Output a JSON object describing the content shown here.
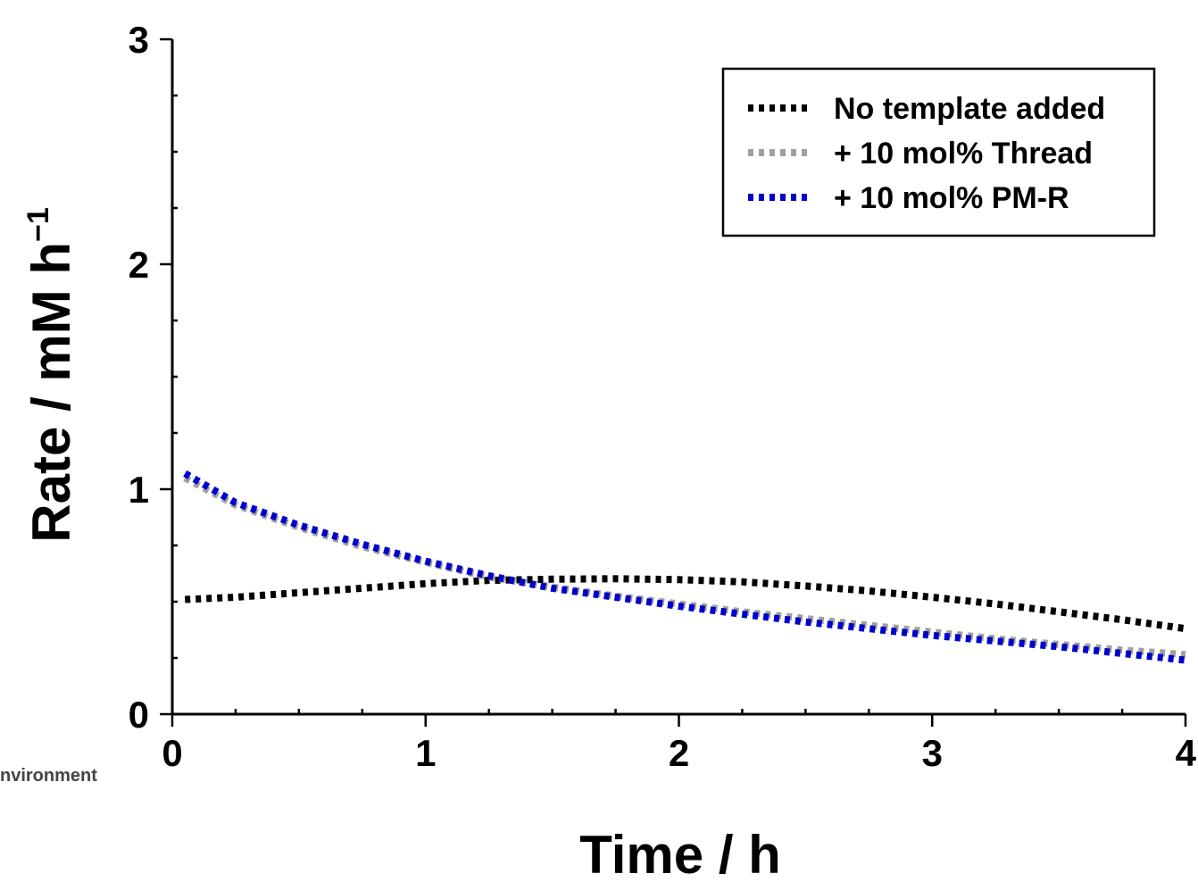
{
  "chart_data": {
    "type": "line",
    "xlabel": "Time / h",
    "ylabel": "Rate / mM h",
    "ylabel_superscript": "−1",
    "xlim": [
      0,
      4
    ],
    "ylim": [
      0,
      3
    ],
    "x_ticks": [
      "0",
      "1",
      "2",
      "3",
      "4"
    ],
    "y_ticks": [
      "0",
      "1",
      "2",
      "3"
    ],
    "grid": false,
    "legend_position": "top-right",
    "series": [
      {
        "name": "No template added",
        "color": "#000000",
        "x": [
          0.05,
          0.25,
          0.5,
          0.75,
          1.0,
          1.25,
          1.5,
          1.75,
          2.0,
          2.25,
          2.5,
          2.75,
          3.0,
          3.25,
          3.5,
          3.75,
          4.0
        ],
        "y": [
          0.51,
          0.52,
          0.54,
          0.56,
          0.58,
          0.595,
          0.6,
          0.602,
          0.598,
          0.588,
          0.57,
          0.548,
          0.52,
          0.49,
          0.455,
          0.42,
          0.38
        ]
      },
      {
        "name": "+ 10 mol% Thread",
        "color": "#a0a0a0",
        "x": [
          0.05,
          0.25,
          0.5,
          0.75,
          1.0,
          1.25,
          1.5,
          1.75,
          2.0,
          2.25,
          2.5,
          2.75,
          3.0,
          3.25,
          3.5,
          3.75,
          4.0
        ],
        "y": [
          1.05,
          0.93,
          0.83,
          0.745,
          0.675,
          0.61,
          0.565,
          0.525,
          0.49,
          0.455,
          0.425,
          0.395,
          0.365,
          0.335,
          0.31,
          0.285,
          0.265
        ]
      },
      {
        "name": "+ 10 mol% PM-R",
        "color": "#0000cc",
        "x": [
          0.05,
          0.25,
          0.5,
          0.75,
          1.0,
          1.25,
          1.5,
          1.75,
          2.0,
          2.25,
          2.5,
          2.75,
          3.0,
          3.25,
          3.5,
          3.75,
          4.0
        ],
        "y": [
          1.07,
          0.94,
          0.84,
          0.755,
          0.68,
          0.615,
          0.56,
          0.52,
          0.48,
          0.445,
          0.41,
          0.38,
          0.35,
          0.325,
          0.3,
          0.27,
          0.24
        ]
      }
    ]
  },
  "footer_fragment": "nvironment"
}
